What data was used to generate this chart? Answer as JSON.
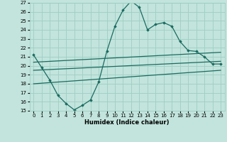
{
  "xlabel": "Humidex (Indice chaleur)",
  "ylabel": "",
  "xlim": [
    -0.5,
    23.5
  ],
  "ylim": [
    15,
    27
  ],
  "xticks": [
    0,
    1,
    2,
    3,
    4,
    5,
    6,
    7,
    8,
    9,
    10,
    11,
    12,
    13,
    14,
    15,
    16,
    17,
    18,
    19,
    20,
    21,
    22,
    23
  ],
  "yticks": [
    15,
    16,
    17,
    18,
    19,
    20,
    21,
    22,
    23,
    24,
    25,
    26,
    27
  ],
  "bg_color": "#c2e4dc",
  "grid_color": "#9ecec4",
  "line_color": "#1a6b60",
  "line1_x": [
    0,
    1,
    2,
    3,
    4,
    5,
    6,
    7,
    8,
    9,
    10,
    11,
    12,
    13,
    14,
    15,
    16,
    17,
    18,
    19,
    20,
    21,
    22,
    23
  ],
  "line1_y": [
    21.2,
    19.8,
    18.4,
    16.7,
    15.8,
    15.1,
    15.6,
    16.2,
    18.2,
    21.6,
    24.4,
    26.2,
    27.2,
    26.5,
    24.0,
    24.6,
    24.8,
    24.4,
    22.7,
    21.7,
    21.6,
    21.0,
    20.2,
    20.2
  ],
  "line2_x": [
    0,
    23
  ],
  "line2_y": [
    18.0,
    19.5
  ],
  "line3_x": [
    0,
    23
  ],
  "line3_y": [
    19.5,
    20.5
  ],
  "line4_x": [
    0,
    23
  ],
  "line4_y": [
    20.4,
    21.5
  ]
}
